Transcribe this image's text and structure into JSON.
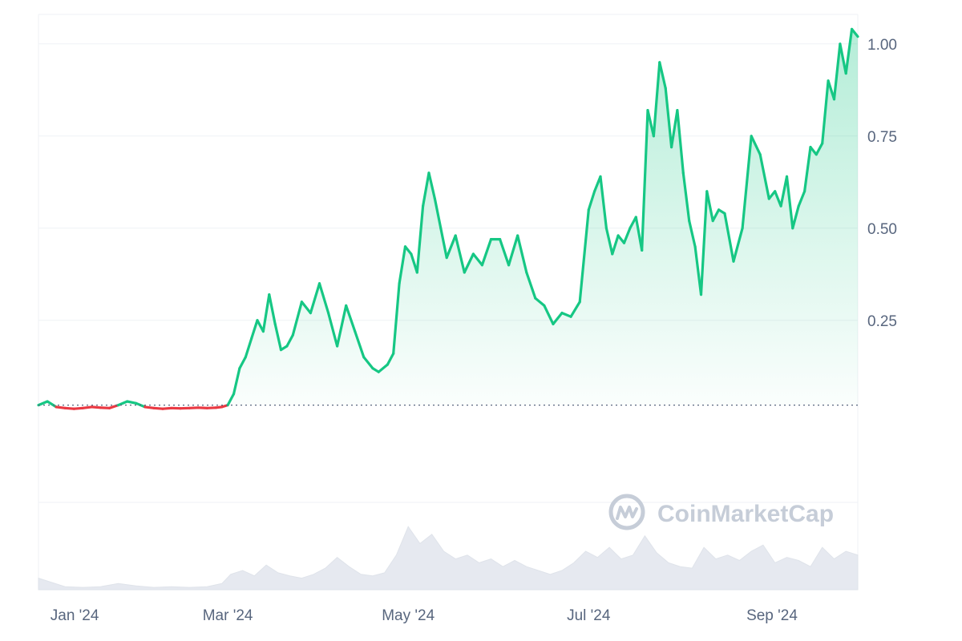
{
  "watermark": {
    "text": "CoinMarketCap",
    "icon": "coinmarketcap-logo-icon"
  },
  "colors": {
    "up_line": "#16c784",
    "down_line": "#ea3943",
    "up_fill": "#16c784",
    "volume": "#e6e9f0",
    "grid": "#eff2f5",
    "baseline": "#58667e",
    "axis_text": "#58667e",
    "watermark": "#c6cdd8"
  },
  "chart_data": {
    "type": "area",
    "title": "",
    "xlabel": "",
    "ylabel": "",
    "y_axis_position": "right",
    "grid": true,
    "ylim": [
      -0.02,
      1.08
    ],
    "xlim": [
      "2023-12-28",
      "2024-09-30"
    ],
    "x_ticks": [
      {
        "date": "2024-01-01",
        "label": "Jan '24"
      },
      {
        "date": "2024-03-01",
        "label": "Mar '24"
      },
      {
        "date": "2024-05-01",
        "label": "May '24"
      },
      {
        "date": "2024-07-01",
        "label": "Jul '24"
      },
      {
        "date": "2024-09-01",
        "label": "Sep '24"
      }
    ],
    "y_ticks": [
      {
        "value": 0.25,
        "label": "0.25"
      },
      {
        "value": 0.5,
        "label": "0.50"
      },
      {
        "value": 0.75,
        "label": "0.75"
      },
      {
        "value": 1.0,
        "label": "1.00"
      }
    ],
    "baseline_value": 0.02,
    "series": [
      {
        "x": [
          "2023-12-28",
          "2023-12-31",
          "2024-01-03",
          "2024-01-06",
          "2024-01-09",
          "2024-01-12",
          "2024-01-15",
          "2024-01-18",
          "2024-01-21",
          "2024-01-24",
          "2024-01-27",
          "2024-01-30",
          "2024-02-02",
          "2024-02-05",
          "2024-02-08",
          "2024-02-11",
          "2024-02-14",
          "2024-02-17",
          "2024-02-20",
          "2024-02-23",
          "2024-02-26",
          "2024-02-28",
          "2024-03-01",
          "2024-03-03",
          "2024-03-05",
          "2024-03-07",
          "2024-03-09",
          "2024-03-11",
          "2024-03-13",
          "2024-03-15",
          "2024-03-17",
          "2024-03-19",
          "2024-03-21",
          "2024-03-23",
          "2024-03-26",
          "2024-03-29",
          "2024-04-01",
          "2024-04-04",
          "2024-04-07",
          "2024-04-10",
          "2024-04-13",
          "2024-04-16",
          "2024-04-19",
          "2024-04-21",
          "2024-04-24",
          "2024-04-26",
          "2024-04-28",
          "2024-04-30",
          "2024-05-02",
          "2024-05-04",
          "2024-05-06",
          "2024-05-08",
          "2024-05-10",
          "2024-05-12",
          "2024-05-14",
          "2024-05-17",
          "2024-05-20",
          "2024-05-23",
          "2024-05-26",
          "2024-05-29",
          "2024-06-01",
          "2024-06-04",
          "2024-06-07",
          "2024-06-10",
          "2024-06-13",
          "2024-06-16",
          "2024-06-19",
          "2024-06-22",
          "2024-06-25",
          "2024-06-28",
          "2024-07-01",
          "2024-07-03",
          "2024-07-05",
          "2024-07-07",
          "2024-07-09",
          "2024-07-11",
          "2024-07-13",
          "2024-07-15",
          "2024-07-17",
          "2024-07-19",
          "2024-07-21",
          "2024-07-23",
          "2024-07-25",
          "2024-07-27",
          "2024-07-29",
          "2024-07-31",
          "2024-08-02",
          "2024-08-04",
          "2024-08-06",
          "2024-08-08",
          "2024-08-10",
          "2024-08-12",
          "2024-08-14",
          "2024-08-16",
          "2024-08-19",
          "2024-08-22",
          "2024-08-25",
          "2024-08-28",
          "2024-08-31",
          "2024-09-02",
          "2024-09-04",
          "2024-09-06",
          "2024-09-08",
          "2024-09-10",
          "2024-09-12",
          "2024-09-14",
          "2024-09-16",
          "2024-09-18",
          "2024-09-20",
          "2024-09-22",
          "2024-09-24",
          "2024-09-26",
          "2024-09-28",
          "2024-09-30"
        ],
        "y": [
          0.02,
          0.03,
          0.015,
          0.012,
          0.01,
          0.012,
          0.015,
          0.013,
          0.012,
          0.02,
          0.03,
          0.025,
          0.015,
          0.012,
          0.01,
          0.012,
          0.011,
          0.012,
          0.013,
          0.012,
          0.013,
          0.015,
          0.02,
          0.05,
          0.12,
          0.15,
          0.2,
          0.25,
          0.22,
          0.32,
          0.24,
          0.17,
          0.18,
          0.21,
          0.3,
          0.27,
          0.35,
          0.27,
          0.18,
          0.29,
          0.22,
          0.15,
          0.12,
          0.11,
          0.13,
          0.16,
          0.35,
          0.45,
          0.43,
          0.38,
          0.56,
          0.65,
          0.58,
          0.5,
          0.42,
          0.48,
          0.38,
          0.43,
          0.4,
          0.47,
          0.47,
          0.4,
          0.48,
          0.38,
          0.31,
          0.29,
          0.24,
          0.27,
          0.26,
          0.3,
          0.55,
          0.6,
          0.64,
          0.5,
          0.43,
          0.48,
          0.46,
          0.5,
          0.53,
          0.44,
          0.82,
          0.75,
          0.95,
          0.88,
          0.72,
          0.82,
          0.65,
          0.52,
          0.45,
          0.32,
          0.6,
          0.52,
          0.55,
          0.54,
          0.41,
          0.5,
          0.75,
          0.7,
          0.58,
          0.6,
          0.56,
          0.64,
          0.5,
          0.56,
          0.6,
          0.72,
          0.7,
          0.73,
          0.9,
          0.85,
          1.0,
          0.92,
          1.04,
          1.02
        ],
        "type": "line"
      },
      {
        "x": [
          "2023-12-28",
          "2024-01-01",
          "2024-01-06",
          "2024-01-12",
          "2024-01-18",
          "2024-01-24",
          "2024-01-30",
          "2024-02-05",
          "2024-02-11",
          "2024-02-17",
          "2024-02-23",
          "2024-02-28",
          "2024-03-02",
          "2024-03-06",
          "2024-03-10",
          "2024-03-14",
          "2024-03-18",
          "2024-03-22",
          "2024-03-26",
          "2024-03-30",
          "2024-04-03",
          "2024-04-07",
          "2024-04-11",
          "2024-04-15",
          "2024-04-19",
          "2024-04-23",
          "2024-04-27",
          "2024-05-01",
          "2024-05-05",
          "2024-05-09",
          "2024-05-13",
          "2024-05-17",
          "2024-05-21",
          "2024-05-25",
          "2024-05-29",
          "2024-06-02",
          "2024-06-06",
          "2024-06-10",
          "2024-06-14",
          "2024-06-18",
          "2024-06-22",
          "2024-06-26",
          "2024-06-30",
          "2024-07-04",
          "2024-07-08",
          "2024-07-12",
          "2024-07-16",
          "2024-07-20",
          "2024-07-24",
          "2024-07-28",
          "2024-08-01",
          "2024-08-05",
          "2024-08-09",
          "2024-08-13",
          "2024-08-17",
          "2024-08-21",
          "2024-08-25",
          "2024-08-29",
          "2024-09-02",
          "2024-09-06",
          "2024-09-10",
          "2024-09-14",
          "2024-09-18",
          "2024-09-22",
          "2024-09-26",
          "2024-09-30"
        ],
        "y": [
          0.15,
          0.1,
          0.04,
          0.03,
          0.04,
          0.08,
          0.05,
          0.03,
          0.04,
          0.03,
          0.04,
          0.08,
          0.2,
          0.25,
          0.18,
          0.32,
          0.22,
          0.18,
          0.15,
          0.2,
          0.28,
          0.42,
          0.3,
          0.2,
          0.18,
          0.22,
          0.45,
          0.82,
          0.6,
          0.72,
          0.5,
          0.4,
          0.45,
          0.35,
          0.4,
          0.3,
          0.38,
          0.3,
          0.25,
          0.2,
          0.25,
          0.35,
          0.5,
          0.42,
          0.55,
          0.4,
          0.45,
          0.7,
          0.48,
          0.35,
          0.3,
          0.28,
          0.55,
          0.4,
          0.45,
          0.38,
          0.5,
          0.58,
          0.35,
          0.42,
          0.38,
          0.3,
          0.55,
          0.4,
          0.5,
          0.45
        ],
        "type": "volume"
      }
    ]
  }
}
